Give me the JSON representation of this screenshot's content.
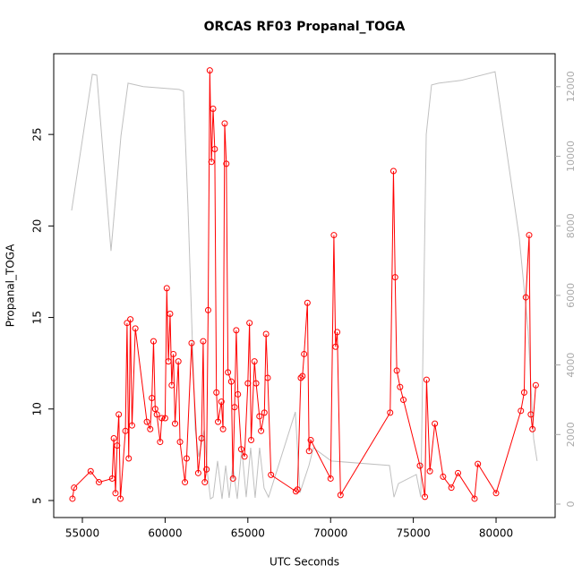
{
  "chart_data": {
    "type": "line",
    "title": "ORCAS RF03 Propanal_TOGA",
    "xlabel": "UTC Seconds",
    "ylabel": "Propanal_TOGA",
    "xlim": [
      53268,
      83570
    ],
    "ylim": [
      4.07,
      29.41
    ],
    "y2lim": [
      -386,
      12947
    ],
    "xticks": [
      55000,
      60000,
      65000,
      70000,
      75000,
      80000
    ],
    "yticks": [
      5,
      10,
      15,
      20,
      25
    ],
    "y2ticks": [
      0,
      2000,
      4000,
      6000,
      8000,
      10000,
      12000
    ],
    "series": [
      {
        "color": "#c0c0c0",
        "axis": "y2",
        "marker": false,
        "x": [
          54350,
          55600,
          55870,
          56730,
          57330,
          57760,
          58680,
          60840,
          61110,
          61380,
          61820,
          62030,
          62360,
          62570,
          62740,
          62900,
          63170,
          63440,
          63660,
          63870,
          64090,
          64360,
          64630,
          64900,
          65170,
          65440,
          65710,
          65980,
          66250,
          67870,
          68150,
          68690,
          68960,
          70040,
          73560,
          73830,
          74100,
          75180,
          75450,
          75780,
          76100,
          76530,
          77880,
          79940,
          81400,
          81940,
          82270,
          82480
        ],
        "values": [
          8440,
          12355,
          12330,
          7280,
          10580,
          12100,
          12000,
          11920,
          11870,
          8570,
          2140,
          1360,
          2140,
          850,
          150,
          200,
          1240,
          150,
          1110,
          180,
          1110,
          150,
          1620,
          200,
          1620,
          180,
          1620,
          460,
          200,
          2650,
          330,
          1110,
          1620,
          1240,
          1110,
          200,
          590,
          850,
          200,
          10630,
          12050,
          12100,
          12180,
          12430,
          7670,
          4970,
          1880,
          1240
        ]
      },
      {
        "color": "#ff0000",
        "marker": true,
        "x": [
          54400,
          54500,
          55500,
          56000,
          56800,
          56900,
          57000,
          57100,
          57200,
          57300,
          57600,
          57700,
          57800,
          57900,
          58000,
          58200,
          58900,
          59100,
          59200,
          59300,
          59400,
          59500,
          59700,
          59800,
          60000,
          60100,
          60200,
          60300,
          60400,
          60500,
          60600,
          60800,
          60900,
          61200,
          61300,
          61600,
          62000,
          62200,
          62300,
          62400,
          62500,
          62600,
          62700,
          62800,
          62900,
          63000,
          63100,
          63200,
          63400,
          63500,
          63600,
          63700,
          63800,
          64000,
          64100,
          64200,
          64300,
          64400,
          64600,
          64800,
          65000,
          65100,
          65200,
          65400,
          65500,
          65700,
          65800,
          66000,
          66100,
          66200,
          66400,
          67900,
          68000,
          68200,
          68300,
          68400,
          68600,
          68700,
          68800,
          70000,
          70200,
          70300,
          70400,
          70600,
          73600,
          73800,
          73900,
          74000,
          74200,
          74400,
          75400,
          75700,
          75800,
          76000,
          76300,
          76800,
          77300,
          77700,
          78700,
          78900,
          80000,
          81500,
          81700,
          81800,
          82000,
          82100,
          82200,
          82400
        ],
        "values": [
          5.1,
          5.7,
          6.6,
          6.0,
          6.2,
          8.4,
          5.4,
          8.0,
          9.7,
          5.1,
          8.8,
          14.7,
          7.3,
          14.9,
          9.1,
          14.4,
          9.3,
          8.9,
          10.6,
          13.7,
          10.0,
          9.7,
          8.2,
          9.5,
          9.5,
          16.6,
          12.6,
          15.2,
          11.3,
          13.0,
          9.2,
          12.6,
          8.2,
          6.0,
          7.3,
          13.6,
          6.5,
          8.4,
          13.7,
          6.0,
          6.7,
          15.4,
          28.5,
          23.5,
          26.4,
          24.2,
          10.9,
          9.3,
          10.4,
          8.9,
          25.6,
          23.4,
          12.0,
          11.5,
          6.2,
          10.1,
          14.3,
          10.8,
          7.8,
          7.4,
          11.4,
          14.7,
          8.3,
          12.6,
          11.4,
          9.6,
          8.8,
          9.8,
          14.1,
          11.7,
          6.4,
          5.5,
          5.6,
          11.7,
          11.8,
          13.0,
          15.8,
          7.7,
          8.3,
          6.2,
          19.5,
          13.4,
          14.2,
          5.3,
          9.8,
          23.0,
          17.2,
          12.1,
          11.2,
          10.5,
          6.9,
          5.2,
          11.6,
          6.6,
          9.2,
          6.3,
          5.7,
          6.5,
          5.1,
          7.0,
          5.4,
          9.9,
          10.9,
          16.1,
          19.5,
          9.7,
          8.9,
          11.3
        ]
      }
    ]
  }
}
